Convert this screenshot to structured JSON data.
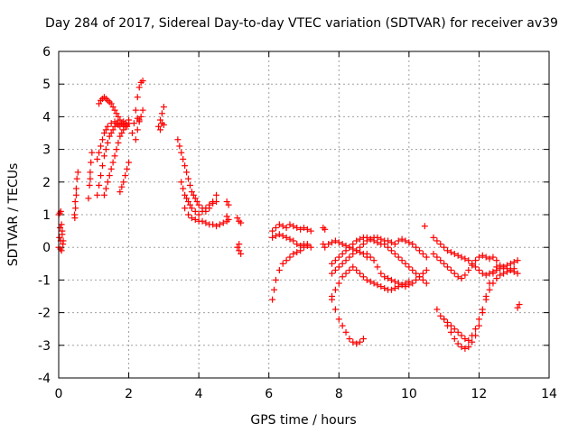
{
  "chart_data": {
    "type": "scatter",
    "title": "Day 284 of 2017, Sidereal Day-to-day VTEC variation (SDTVAR) for receiver av39",
    "xlabel": "GPS time / hours",
    "ylabel": "SDTVAR / TECUs",
    "xlim": [
      0,
      14
    ],
    "ylim": [
      -4,
      6
    ],
    "xticks": [
      "0",
      "2",
      "4",
      "6",
      "8",
      "10",
      "12",
      "14"
    ],
    "yticks": [
      "-4",
      "-3",
      "-2",
      "-1",
      "0",
      "1",
      "2",
      "3",
      "4",
      "5",
      "6"
    ],
    "grid": true,
    "marker": "plus",
    "color": "#ff0000",
    "series": [
      {
        "x": [
          0.0,
          0.02,
          0.04,
          0.06,
          0.08,
          0.1,
          0.12,
          0.0,
          0.03,
          0.06,
          0.1,
          0.13,
          0.05,
          0.08,
          0.45,
          0.47,
          0.5,
          0.52,
          0.55,
          0.48,
          0.5,
          0.46,
          0.85,
          0.88,
          0.9,
          0.92,
          0.95,
          0.9,
          1.1,
          1.15,
          1.2,
          1.25,
          1.3,
          1.35,
          1.4,
          1.45,
          1.5,
          1.55,
          1.6,
          1.65,
          1.7,
          1.75,
          1.8,
          1.85,
          1.9,
          1.95,
          2.0,
          1.15,
          1.2,
          1.25,
          1.3,
          1.35,
          1.4,
          1.45,
          1.5,
          1.55,
          1.6,
          1.65,
          1.7,
          1.75,
          1.8,
          1.85,
          1.9,
          1.1,
          1.15,
          1.2,
          1.25,
          1.3,
          1.35,
          1.4,
          1.5,
          1.6,
          1.7,
          1.3,
          1.35,
          1.4,
          1.45,
          1.5,
          1.55,
          1.6,
          1.65,
          1.7,
          1.75,
          1.8,
          1.85,
          1.9,
          1.95,
          2.0,
          1.75,
          1.8,
          1.85,
          1.9,
          1.95,
          2.0,
          2.1,
          2.15,
          2.2,
          2.25,
          2.3,
          2.35,
          2.4,
          2.2,
          2.25,
          2.3,
          2.35,
          2.4,
          2.25,
          2.3,
          2.85,
          2.9,
          2.95,
          3.0,
          2.9,
          2.95,
          3.0,
          3.4,
          3.45,
          3.5,
          3.55,
          3.6,
          3.65,
          3.7,
          3.75,
          3.8,
          3.85,
          3.9,
          3.95,
          4.0,
          4.1,
          4.2,
          4.3,
          4.4,
          4.5,
          3.5,
          3.55,
          3.6,
          3.65,
          3.7,
          3.75,
          3.8,
          3.9,
          4.0,
          4.1,
          4.2,
          4.3,
          4.4,
          4.5,
          3.6,
          3.7,
          3.8,
          3.9,
          4.0,
          4.1,
          4.2,
          4.3,
          4.4,
          4.5,
          4.6,
          4.7,
          4.8,
          4.85,
          4.8,
          4.85,
          4.8,
          5.1,
          5.15,
          5.2,
          5.1,
          5.15,
          5.2,
          5.15,
          6.1,
          6.2,
          6.3,
          6.4,
          6.5,
          6.6,
          6.7,
          6.8,
          6.9,
          7.0,
          7.1,
          7.2,
          6.1,
          6.2,
          6.3,
          6.4,
          6.5,
          6.6,
          6.7,
          6.8,
          6.9,
          7.0,
          7.1,
          7.2,
          6.1,
          6.15,
          6.2,
          6.3,
          6.4,
          6.5,
          6.6,
          6.7,
          6.8,
          6.9,
          7.0,
          7.1,
          7.55,
          7.6,
          7.55,
          7.6,
          7.7,
          7.8,
          7.9,
          8.0,
          8.1,
          8.2,
          8.3,
          8.4,
          8.5,
          8.6,
          8.7,
          8.8,
          7.8,
          7.9,
          8.0,
          8.1,
          8.2,
          8.3,
          8.4,
          8.5,
          8.6,
          8.7,
          8.8,
          8.9,
          9.0,
          9.1,
          9.2,
          9.3,
          9.4,
          9.5,
          9.6,
          9.7,
          9.8,
          9.9,
          10.0,
          10.1,
          10.2,
          10.3,
          10.4,
          10.5,
          7.8,
          7.9,
          8.0,
          8.1,
          8.2,
          8.3,
          8.4,
          8.5,
          8.6,
          8.7,
          8.8,
          8.9,
          9.0,
          9.1,
          9.2,
          9.3,
          9.4,
          9.5,
          9.6,
          9.7,
          9.8,
          9.9,
          10.0,
          10.1,
          10.2,
          10.3,
          10.4,
          10.5,
          7.8,
          7.9,
          8.0,
          8.1,
          8.2,
          8.3,
          8.4,
          8.5,
          8.6,
          8.7,
          8.8,
          8.9,
          9.0,
          9.1,
          9.2,
          9.3,
          9.4,
          9.5,
          9.6,
          9.7,
          9.8,
          9.9,
          10.0,
          8.8,
          8.9,
          9.0,
          9.1,
          9.2,
          9.3,
          9.4,
          9.5,
          9.6,
          9.7,
          9.8,
          9.9,
          10.0,
          10.1,
          10.2,
          10.3,
          10.4,
          10.5,
          7.8,
          7.9,
          8.0,
          8.1,
          8.2,
          8.3,
          8.4,
          8.5,
          8.6,
          8.7,
          10.45,
          10.7,
          10.8,
          10.9,
          11.0,
          11.1,
          11.2,
          11.3,
          11.4,
          11.5,
          11.6,
          11.7,
          11.8,
          11.9,
          12.0,
          12.1,
          12.2,
          12.3,
          12.4,
          12.5,
          10.7,
          10.8,
          10.9,
          11.0,
          11.1,
          11.2,
          11.3,
          11.4,
          11.5,
          11.6,
          11.7,
          11.8,
          11.9,
          12.0,
          12.1,
          12.2,
          12.3,
          12.4,
          12.5,
          12.6,
          12.7,
          12.8,
          12.9,
          13.0,
          13.1,
          11.0,
          11.1,
          11.2,
          11.3,
          11.4,
          11.5,
          11.6,
          11.7,
          11.8,
          11.9,
          12.0,
          12.1,
          12.2,
          12.3,
          12.4,
          12.5,
          12.6,
          12.7,
          12.8,
          12.9,
          13.0,
          13.1,
          10.8,
          10.9,
          11.0,
          11.1,
          11.2,
          11.3,
          11.4,
          11.5,
          11.6,
          11.7,
          11.8,
          11.9,
          12.0,
          12.1,
          12.2,
          12.3,
          12.4,
          12.5,
          12.6,
          12.7,
          12.8,
          12.9,
          13.0,
          13.1,
          13.15
        ],
        "y": [
          0.0,
          0.3,
          0.6,
          0.2,
          -0.1,
          0.4,
          0.1,
          1.0,
          1.05,
          1.1,
          0.5,
          0.2,
          -0.05,
          0.7,
          1.0,
          1.4,
          1.8,
          2.1,
          2.3,
          1.2,
          1.6,
          0.9,
          1.5,
          1.9,
          2.3,
          2.6,
          2.9,
          2.1,
          1.6,
          1.9,
          2.2,
          2.5,
          2.8,
          3.0,
          3.2,
          3.4,
          3.5,
          3.6,
          3.7,
          3.8,
          3.75,
          3.7,
          3.8,
          3.85,
          3.8,
          3.7,
          3.9,
          4.4,
          4.5,
          4.55,
          4.6,
          4.55,
          4.5,
          4.45,
          4.4,
          4.3,
          4.2,
          4.1,
          4.0,
          3.9,
          3.8,
          3.75,
          3.7,
          2.7,
          2.9,
          3.1,
          3.3,
          3.5,
          3.6,
          3.7,
          3.8,
          3.85,
          3.8,
          1.6,
          1.8,
          2.0,
          2.2,
          2.4,
          2.6,
          2.8,
          3.0,
          3.2,
          3.4,
          3.5,
          3.6,
          3.7,
          3.75,
          3.8,
          1.7,
          1.85,
          2.0,
          2.2,
          2.4,
          2.6,
          3.5,
          3.8,
          4.2,
          4.6,
          4.9,
          5.05,
          5.1,
          3.3,
          3.6,
          3.9,
          4.0,
          4.2,
          3.95,
          3.85,
          3.7,
          3.9,
          4.1,
          4.3,
          3.6,
          3.8,
          3.75,
          3.3,
          3.1,
          2.9,
          2.7,
          2.5,
          2.3,
          2.1,
          1.9,
          1.7,
          1.6,
          1.5,
          1.4,
          1.3,
          1.2,
          1.1,
          1.2,
          1.4,
          1.6,
          2.0,
          1.8,
          1.6,
          1.5,
          1.4,
          1.3,
          1.2,
          1.1,
          1.0,
          1.1,
          1.2,
          1.3,
          1.35,
          1.4,
          1.2,
          1.0,
          0.9,
          0.85,
          0.8,
          0.8,
          0.75,
          0.7,
          0.7,
          0.65,
          0.7,
          0.75,
          1.4,
          1.3,
          0.95,
          0.85,
          0.8,
          0.9,
          0.8,
          0.75,
          0.0,
          -0.1,
          -0.2,
          0.1,
          0.5,
          0.6,
          0.7,
          0.65,
          0.6,
          0.7,
          0.65,
          0.6,
          0.55,
          0.6,
          0.55,
          0.5,
          0.3,
          0.35,
          0.4,
          0.35,
          0.3,
          0.25,
          0.2,
          0.1,
          0.05,
          0.1,
          0.05,
          0.0,
          -1.6,
          -1.3,
          -1.0,
          -0.7,
          -0.5,
          -0.4,
          -0.3,
          -0.2,
          -0.15,
          -0.1,
          0.0,
          0.1,
          0.6,
          0.55,
          0.1,
          0.0,
          0.1,
          0.15,
          0.2,
          0.15,
          0.1,
          0.05,
          0.0,
          -0.05,
          -0.1,
          -0.15,
          -0.2,
          -0.3,
          -0.5,
          -0.4,
          -0.3,
          -0.2,
          -0.1,
          0.0,
          0.1,
          0.2,
          0.25,
          0.3,
          0.3,
          0.25,
          0.2,
          0.15,
          0.1,
          0.1,
          0.0,
          -0.1,
          -0.2,
          -0.3,
          -0.4,
          -0.5,
          -0.6,
          -0.7,
          -0.8,
          -0.9,
          -1.0,
          -1.1,
          -0.8,
          -0.7,
          -0.6,
          -0.5,
          -0.4,
          -0.3,
          -0.2,
          -0.1,
          0.0,
          0.1,
          0.2,
          0.25,
          0.3,
          0.3,
          0.25,
          0.2,
          0.2,
          0.15,
          0.1,
          0.2,
          0.25,
          0.2,
          0.15,
          0.1,
          0.0,
          -0.1,
          -0.2,
          -0.3,
          -1.5,
          -1.3,
          -1.1,
          -0.9,
          -0.8,
          -0.7,
          -0.6,
          -0.7,
          -0.8,
          -0.9,
          -1.0,
          -1.05,
          -1.1,
          -1.15,
          -1.2,
          -1.25,
          -1.3,
          -1.3,
          -1.25,
          -1.2,
          -1.15,
          -1.1,
          -1.05,
          -0.2,
          -0.3,
          -0.4,
          -0.6,
          -0.8,
          -0.9,
          -0.95,
          -1.0,
          -1.05,
          -1.1,
          -1.15,
          -1.2,
          -1.15,
          -1.1,
          -1.0,
          -0.9,
          -0.8,
          -0.7,
          -1.6,
          -1.9,
          -2.2,
          -2.4,
          -2.6,
          -2.8,
          -2.9,
          -2.95,
          -2.9,
          -2.8,
          0.65,
          -0.2,
          -0.3,
          -0.4,
          -0.5,
          -0.6,
          -0.7,
          -0.8,
          -0.9,
          -0.95,
          -0.85,
          -0.7,
          -0.55,
          -0.4,
          -0.3,
          -0.25,
          -0.3,
          -0.35,
          -0.3,
          -0.4,
          0.3,
          0.2,
          0.1,
          0.0,
          -0.1,
          -0.15,
          -0.2,
          -0.25,
          -0.3,
          -0.35,
          -0.4,
          -0.5,
          -0.6,
          -0.7,
          -0.8,
          -0.85,
          -0.8,
          -0.75,
          -0.7,
          -0.65,
          -0.6,
          -0.55,
          -0.5,
          -0.45,
          -0.4,
          -2.2,
          -2.4,
          -2.6,
          -2.8,
          -2.95,
          -3.05,
          -3.1,
          -3.05,
          -2.9,
          -2.7,
          -2.4,
          -2.0,
          -1.5,
          -1.1,
          -0.8,
          -0.6,
          -0.55,
          -0.6,
          -0.65,
          -0.7,
          -0.75,
          -0.8,
          -1.9,
          -2.1,
          -2.2,
          -2.3,
          -2.4,
          -2.5,
          -2.6,
          -2.7,
          -2.8,
          -2.85,
          -2.7,
          -2.5,
          -2.2,
          -1.9,
          -1.6,
          -1.3,
          -1.1,
          -0.95,
          -0.85,
          -0.8,
          -0.75,
          -0.7,
          -0.65,
          -1.85,
          -1.75
        ]
      }
    ]
  }
}
